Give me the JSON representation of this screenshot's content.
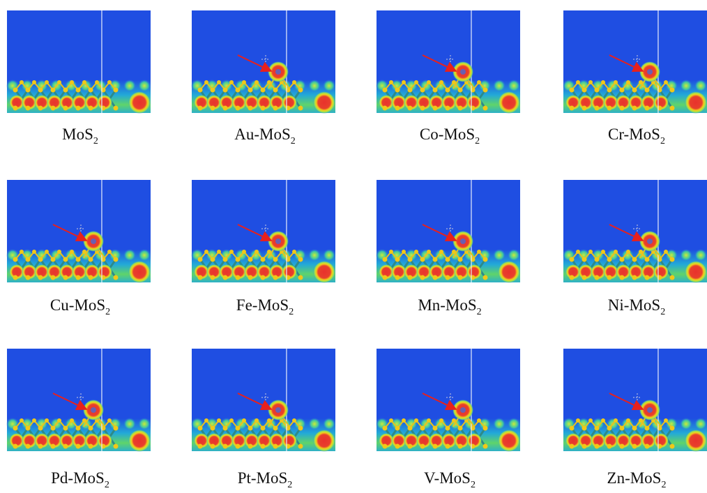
{
  "panels": [
    {
      "text": "MoS",
      "sub": "2"
    },
    {
      "text": "Au-MoS",
      "sub": "2"
    },
    {
      "text": "Co-MoS",
      "sub": "2"
    },
    {
      "text": "Cr-MoS",
      "sub": "2"
    },
    {
      "text": "Cu-MoS",
      "sub": "2"
    },
    {
      "text": "Fe-MoS",
      "sub": "2"
    },
    {
      "text": "Mn-MoS",
      "sub": "2"
    },
    {
      "text": "Ni-MoS",
      "sub": "2"
    },
    {
      "text": "Pd-MoS",
      "sub": "2"
    },
    {
      "text": "Pt-MoS",
      "sub": "2"
    },
    {
      "text": "V-MoS",
      "sub": "2"
    },
    {
      "text": "Zn-MoS",
      "sub": "2"
    }
  ]
}
